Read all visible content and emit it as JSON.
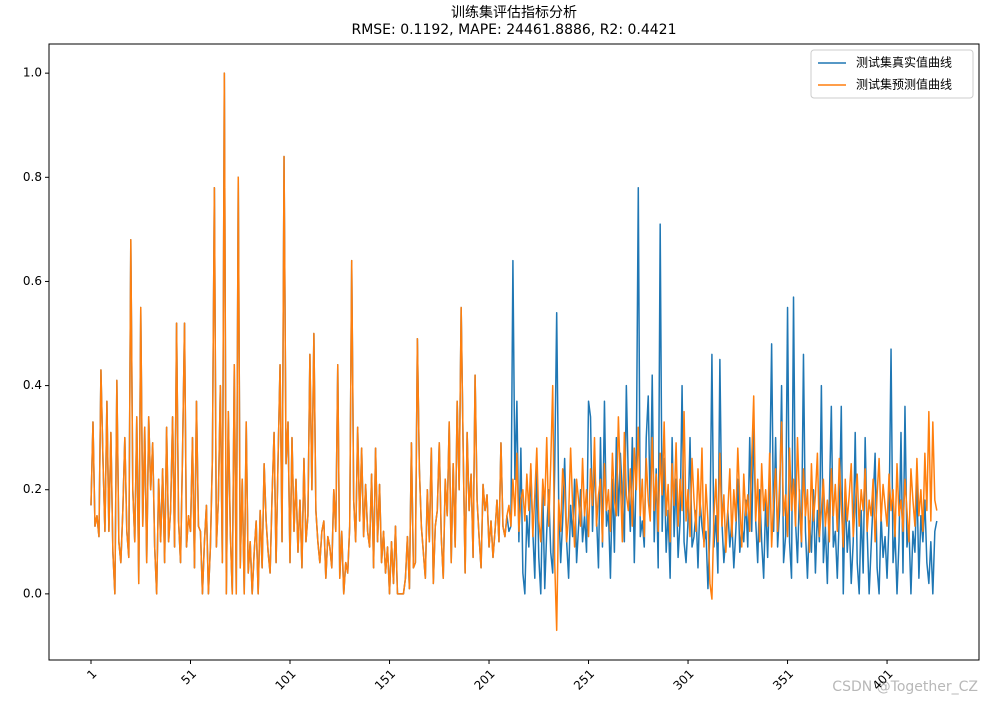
{
  "chart_data": {
    "type": "line",
    "title": "训练集评估指标分析",
    "subtitle": "RMSE: 0.1192, MAPE: 24461.8886, R2: 0.4421",
    "annotation": "CSDN @Together_CZ",
    "legend": "upper right",
    "xlim": [
      -20.1,
      447.2
    ],
    "ylim": [
      -0.127,
      1.056
    ],
    "xticks": [
      1,
      51,
      101,
      151,
      201,
      251,
      301,
      351,
      401
    ],
    "yticks": [
      {
        "value": 0,
        "label": "0.0"
      },
      0.2,
      0.4,
      0.6,
      0.8,
      {
        "value": 1,
        "label": "1.0"
      }
    ],
    "x": [
      1,
      2,
      3,
      4,
      5,
      6,
      7,
      8,
      9,
      10,
      11,
      12,
      13,
      14,
      15,
      16,
      17,
      18,
      19,
      20,
      21,
      22,
      23,
      24,
      25,
      26,
      27,
      28,
      29,
      30,
      31,
      32,
      33,
      34,
      35,
      36,
      37,
      38,
      39,
      40,
      41,
      42,
      43,
      44,
      45,
      46,
      47,
      48,
      49,
      50,
      51,
      52,
      53,
      54,
      55,
      56,
      57,
      58,
      59,
      60,
      61,
      62,
      63,
      64,
      65,
      66,
      67,
      68,
      69,
      70,
      71,
      72,
      73,
      74,
      75,
      76,
      77,
      78,
      79,
      80,
      81,
      82,
      83,
      84,
      85,
      86,
      87,
      88,
      89,
      90,
      91,
      92,
      93,
      94,
      95,
      96,
      97,
      98,
      99,
      100,
      101,
      102,
      103,
      104,
      105,
      106,
      107,
      108,
      109,
      110,
      111,
      112,
      113,
      114,
      115,
      116,
      117,
      118,
      119,
      120,
      121,
      122,
      123,
      124,
      125,
      126,
      127,
      128,
      129,
      130,
      131,
      132,
      133,
      134,
      135,
      136,
      137,
      138,
      139,
      140,
      141,
      142,
      143,
      144,
      145,
      146,
      147,
      148,
      149,
      150,
      151,
      152,
      153,
      154,
      155,
      156,
      157,
      158,
      159,
      160,
      161,
      162,
      163,
      164,
      165,
      166,
      167,
      168,
      169,
      170,
      171,
      172,
      173,
      174,
      175,
      176,
      177,
      178,
      179,
      180,
      181,
      182,
      183,
      184,
      185,
      186,
      187,
      188,
      189,
      190,
      191,
      192,
      193,
      194,
      195,
      196,
      197,
      198,
      199,
      200,
      201,
      202,
      203,
      204,
      205,
      206,
      207,
      208,
      209,
      210,
      211,
      212,
      213,
      214,
      215,
      216,
      217,
      218,
      219,
      220,
      221,
      222,
      223,
      224,
      225,
      226,
      227,
      228,
      229,
      230,
      231,
      232,
      233,
      234,
      235,
      236,
      237,
      238,
      239,
      240,
      241,
      242,
      243,
      244,
      245,
      246,
      247,
      248,
      249,
      250,
      251,
      252,
      253,
      254,
      255,
      256,
      257,
      258,
      259,
      260,
      261,
      262,
      263,
      264,
      265,
      266,
      267,
      268,
      269,
      270,
      271,
      272,
      273,
      274,
      275,
      276,
      277,
      278,
      279,
      280,
      281,
      282,
      283,
      284,
      285,
      286,
      287,
      288,
      289,
      290,
      291,
      292,
      293,
      294,
      295,
      296,
      297,
      298,
      299,
      300,
      301,
      302,
      303,
      304,
      305,
      306,
      307,
      308,
      309,
      310,
      311,
      312,
      313,
      314,
      315,
      316,
      317,
      318,
      319,
      320,
      321,
      322,
      323,
      324,
      325,
      326,
      327,
      328,
      329,
      330,
      331,
      332,
      333,
      334,
      335,
      336,
      337,
      338,
      339,
      340,
      341,
      342,
      343,
      344,
      345,
      346,
      347,
      348,
      349,
      350,
      351,
      352,
      353,
      354,
      355,
      356,
      357,
      358,
      359,
      360,
      361,
      362,
      363,
      364,
      365,
      366,
      367,
      368,
      369,
      370,
      371,
      372,
      373,
      374,
      375,
      376,
      377,
      378,
      379,
      380,
      381,
      382,
      383,
      384,
      385,
      386,
      387,
      388,
      389,
      390,
      391,
      392,
      393,
      394,
      395,
      396,
      397,
      398,
      399,
      400,
      401,
      402,
      403,
      404,
      405,
      406,
      407,
      408,
      409,
      410,
      411,
      412,
      413,
      414,
      415,
      416,
      417,
      418,
      419,
      420,
      421,
      422,
      423,
      424,
      425,
      426
    ],
    "series": [
      {
        "name": "测试集真实值曲线",
        "color": "#1f77b4",
        "values": [
          0.17,
          0.33,
          0.13,
          0.15,
          0.11,
          0.43,
          0.26,
          0.12,
          0.37,
          0.12,
          0.31,
          0.08,
          0,
          0.41,
          0.1,
          0.06,
          0.16,
          0.3,
          0.12,
          0.07,
          0.68,
          0.2,
          0.1,
          0.34,
          0.02,
          0.55,
          0.13,
          0.32,
          0.06,
          0.34,
          0.2,
          0.29,
          0.09,
          0,
          0.22,
          0.1,
          0.24,
          0.06,
          0.32,
          0.1,
          0.16,
          0.34,
          0.09,
          0.52,
          0.14,
          0.06,
          0.27,
          0.52,
          0.09,
          0.15,
          0.12,
          0.3,
          0.05,
          0.37,
          0.13,
          0.12,
          0,
          0.1,
          0.17,
          0,
          0.09,
          0.26,
          0.78,
          0.09,
          0.18,
          0.4,
          0.06,
          1.0,
          0,
          0.35,
          0.12,
          0,
          0.44,
          0,
          0.8,
          0.05,
          0.22,
          0,
          0.33,
          0.04,
          0.1,
          0,
          0.08,
          0.14,
          0,
          0.16,
          0.05,
          0.25,
          0.14,
          0.08,
          0.04,
          0.19,
          0.31,
          0.06,
          0.26,
          0.44,
          0.1,
          0.84,
          0.25,
          0.33,
          0.06,
          0.3,
          0.12,
          0.22,
          0.08,
          0.18,
          0.05,
          0.26,
          0.1,
          0.15,
          0.46,
          0.2,
          0.5,
          0.16,
          0.1,
          0.06,
          0.12,
          0.14,
          0.03,
          0.11,
          0.09,
          0.05,
          0.2,
          0.12,
          0.44,
          0.03,
          0.12,
          0,
          0.06,
          0.04,
          0.13,
          0.64,
          0.18,
          0.1,
          0.32,
          0.14,
          0.28,
          0.11,
          0.21,
          0.12,
          0.09,
          0.23,
          0.05,
          0.28,
          0.1,
          0.21,
          0.06,
          0.12,
          0.04,
          0.09,
          0,
          0.1,
          0.02,
          0.13,
          0,
          0,
          0,
          0,
          0.03,
          0.11,
          0.01,
          0.29,
          0.05,
          0.06,
          0.49,
          0.24,
          0.13,
          0.08,
          0.03,
          0.2,
          0.1,
          0.28,
          0.02,
          0.13,
          0.16,
          0.29,
          0.11,
          0.03,
          0.22,
          0.15,
          0.33,
          0.06,
          0.25,
          0.09,
          0.37,
          0.2,
          0.55,
          0.28,
          0.04,
          0.31,
          0.16,
          0.23,
          0.07,
          0.42,
          0.18,
          0.11,
          0.05,
          0.21,
          0.16,
          0.19,
          0.09,
          0.14,
          0.07,
          0.12,
          0.18,
          0.1,
          0.29,
          0.13,
          0.11,
          0.15,
          0.12,
          0.13,
          0.64,
          0.22,
          0.37,
          0.1,
          0.28,
          0.04,
          0,
          0.15,
          0.09,
          0.24,
          0.12,
          0.03,
          0.24,
          0.07,
          0,
          0.2,
          0.01,
          0.12,
          0.2,
          0.08,
          0.04,
          0.24,
          0.54,
          0.18,
          0.06,
          0.14,
          0.26,
          0.1,
          0.03,
          0.17,
          0.11,
          0.22,
          0.06,
          0.13,
          0.2,
          0.1,
          0.15,
          0.08,
          0.37,
          0.34,
          0.12,
          0.26,
          0.15,
          0.05,
          0.3,
          0.09,
          0.37,
          0.13,
          0.16,
          0.03,
          0.22,
          0.08,
          0.3,
          0.15,
          0.27,
          0.19,
          0.1,
          0.4,
          0.22,
          0.12,
          0.3,
          0.06,
          0.25,
          0.78,
          0.11,
          0.14,
          0.09,
          0.3,
          0.38,
          0.15,
          0.42,
          0.1,
          0.24,
          0.05,
          0.71,
          0.12,
          0.26,
          0.08,
          0.16,
          0.03,
          0.3,
          0.11,
          0.22,
          0.07,
          0.14,
          0.4,
          0.1,
          0.06,
          0.14,
          0.3,
          0.09,
          0.11,
          0.16,
          0.05,
          0.18,
          0.13,
          0.1,
          0.12,
          0.01,
          0.12,
          0.46,
          0.09,
          0.15,
          0.04,
          0.45,
          0.14,
          0.06,
          0.11,
          0.16,
          0.09,
          0.14,
          0.05,
          0.12,
          0.22,
          0.08,
          0.13,
          0.1,
          0.18,
          0.09,
          0.3,
          0.12,
          0.32,
          0.14,
          0.06,
          0.2,
          0.1,
          0.03,
          0.18,
          0.07,
          0.22,
          0.48,
          0.12,
          0.3,
          0.09,
          0.16,
          0.4,
          0.06,
          0.11,
          0.55,
          0.1,
          0.03,
          0.57,
          0.14,
          0.06,
          0.2,
          0.09,
          0.46,
          0.12,
          0.03,
          0.14,
          0.08,
          0.2,
          0.04,
          0.16,
          0.1,
          0.4,
          0.06,
          0.13,
          0.02,
          0.18,
          0.36,
          0.09,
          0.12,
          0.03,
          0.15,
          0.36,
          0,
          0.2,
          0.08,
          0.14,
          0.02,
          0.1,
          0.31,
          0.06,
          0,
          0.16,
          0.04,
          0.3,
          0.12,
          0,
          0.09,
          0.18,
          0.27,
          0.05,
          0,
          0.15,
          0.07,
          0.11,
          0.03,
          0.14,
          0.47,
          0.06,
          0.12,
          0,
          0.1,
          0.31,
          0.04,
          0.36,
          0.09,
          0.13,
          0,
          0.12,
          0.08,
          0.22,
          0.03,
          0.15,
          0.1,
          0.18,
          0.06,
          0.02,
          0.1,
          0,
          0.12,
          0.14
        ]
      },
      {
        "name": "测试集预测值曲线",
        "color": "#ff7f0e",
        "values": [
          0.17,
          0.33,
          0.13,
          0.15,
          0.11,
          0.43,
          0.26,
          0.12,
          0.37,
          0.12,
          0.31,
          0.08,
          0,
          0.41,
          0.1,
          0.06,
          0.16,
          0.3,
          0.12,
          0.07,
          0.68,
          0.2,
          0.1,
          0.34,
          0.02,
          0.55,
          0.13,
          0.32,
          0.06,
          0.34,
          0.2,
          0.29,
          0.09,
          0,
          0.22,
          0.1,
          0.24,
          0.06,
          0.32,
          0.1,
          0.16,
          0.34,
          0.09,
          0.52,
          0.14,
          0.06,
          0.27,
          0.52,
          0.09,
          0.15,
          0.12,
          0.3,
          0.05,
          0.37,
          0.13,
          0.12,
          0,
          0.1,
          0.17,
          0,
          0.09,
          0.26,
          0.78,
          0.09,
          0.18,
          0.4,
          0.06,
          1.0,
          0,
          0.35,
          0.12,
          0,
          0.44,
          0,
          0.8,
          0.05,
          0.22,
          0,
          0.33,
          0.04,
          0.1,
          0,
          0.08,
          0.14,
          0,
          0.16,
          0.05,
          0.25,
          0.14,
          0.08,
          0.04,
          0.19,
          0.31,
          0.06,
          0.26,
          0.44,
          0.1,
          0.84,
          0.25,
          0.33,
          0.06,
          0.3,
          0.12,
          0.22,
          0.08,
          0.18,
          0.05,
          0.26,
          0.1,
          0.15,
          0.46,
          0.2,
          0.5,
          0.16,
          0.1,
          0.06,
          0.12,
          0.14,
          0.03,
          0.11,
          0.09,
          0.05,
          0.2,
          0.12,
          0.44,
          0.03,
          0.12,
          0,
          0.06,
          0.04,
          0.13,
          0.64,
          0.18,
          0.1,
          0.32,
          0.14,
          0.28,
          0.11,
          0.21,
          0.12,
          0.09,
          0.23,
          0.05,
          0.28,
          0.1,
          0.21,
          0.06,
          0.12,
          0.04,
          0.09,
          0,
          0.1,
          0.02,
          0.13,
          0,
          0,
          0,
          0,
          0.03,
          0.11,
          0.01,
          0.29,
          0.05,
          0.06,
          0.49,
          0.24,
          0.13,
          0.08,
          0.03,
          0.2,
          0.1,
          0.28,
          0.02,
          0.13,
          0.16,
          0.29,
          0.11,
          0.03,
          0.22,
          0.15,
          0.33,
          0.06,
          0.25,
          0.09,
          0.37,
          0.2,
          0.55,
          0.28,
          0.04,
          0.31,
          0.16,
          0.23,
          0.07,
          0.42,
          0.18,
          0.11,
          0.05,
          0.21,
          0.16,
          0.19,
          0.09,
          0.14,
          0.07,
          0.12,
          0.18,
          0.1,
          0.29,
          0.13,
          0.11,
          0.15,
          0.17,
          0.13,
          0.22,
          0.15,
          0.27,
          0.12,
          0.18,
          0.2,
          0.14,
          0.23,
          0.16,
          0.25,
          0.11,
          0.19,
          0.28,
          0.14,
          0.1,
          0.22,
          0.17,
          0.3,
          0.13,
          0.25,
          0.4,
          0.06,
          -0.07,
          0.18,
          0.12,
          0.24,
          0.2,
          0.1,
          0.15,
          0.28,
          0.17,
          0.09,
          0.22,
          0.18,
          0.13,
          0.26,
          0.15,
          0.2,
          0.11,
          0.24,
          0.17,
          0.3,
          0.13,
          0.19,
          0.22,
          0.1,
          0.25,
          0.16,
          0.2,
          0.12,
          0.27,
          0.18,
          0.15,
          0.34,
          0.22,
          0.1,
          0.31,
          0.19,
          0.16,
          0.24,
          0.13,
          0.28,
          0.2,
          0.32,
          0.15,
          0.22,
          0.11,
          0.26,
          0.18,
          0.14,
          0.3,
          0.16,
          0.23,
          0.12,
          0.27,
          0.19,
          0.33,
          0.15,
          0.21,
          0.1,
          0.25,
          0.17,
          0.29,
          0.13,
          0.22,
          0.16,
          0.35,
          0.14,
          0.2,
          0.11,
          0.26,
          0.18,
          0.12,
          0.24,
          0.15,
          0.28,
          0.09,
          0.21,
          0.14,
          0.02,
          -0.01,
          0.15,
          0.22,
          0.1,
          0.27,
          0.13,
          0.19,
          0.08,
          0.16,
          0.24,
          0.11,
          0.2,
          0.14,
          0.28,
          0.18,
          0.09,
          0.23,
          0.15,
          0.19,
          0.12,
          0.26,
          0.38,
          0.14,
          0.22,
          0.1,
          0.25,
          0.16,
          0.2,
          0.13,
          0.27,
          0.09,
          0.18,
          0.24,
          0.12,
          0.21,
          0.33,
          0.15,
          0.19,
          0.11,
          0.28,
          0.16,
          0.22,
          0.13,
          0.3,
          0.18,
          0.1,
          0.24,
          0.15,
          0.2,
          0.08,
          0.25,
          0.14,
          0.19,
          0.27,
          0.11,
          0.16,
          0.22,
          0.13,
          0.18,
          0.1,
          0.24,
          0.15,
          0.21,
          0.12,
          0.26,
          0.17,
          0.09,
          0.22,
          0.14,
          0.19,
          0.25,
          0.11,
          0.17,
          0.23,
          0.13,
          0.2,
          0.16,
          0.24,
          0.12,
          0.18,
          0.15,
          0.22,
          0.1,
          0.19,
          0.26,
          0.14,
          0.21,
          0.17,
          0.13,
          0.23,
          0.16,
          0.2,
          0.11,
          0.25,
          0.15,
          0.18,
          0.12,
          0.22,
          0.16,
          0.1,
          0.24,
          0.18,
          0.13,
          0.26,
          0.15,
          0.2,
          0.12,
          0.27,
          0.16,
          0.35,
          0.14,
          0.33,
          0.18,
          0.16
        ]
      }
    ]
  }
}
